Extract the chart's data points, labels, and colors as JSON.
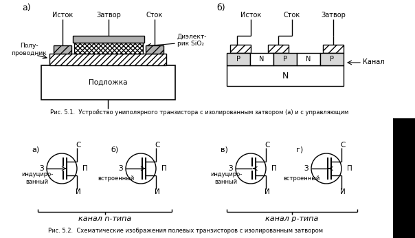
{
  "bg_color": "#ffffff",
  "line_color": "#000000",
  "fig_width": 6.04,
  "fig_height": 3.46,
  "dpi": 100,
  "top_caption": "Рис. 5.1.  Устройство униполярного транзистора с изолированным затвором (а) и с управляющим",
  "bottom_caption": "Рис. 5.2.  Схематические изображения полевых транзисторов с изолированным затвором",
  "label_a1": "а)",
  "label_b1": "б)",
  "label_podlozhka": "Подложка",
  "label_polu": "Полу-\nпроводник",
  "label_zatvor_a": "Затвор",
  "label_istok_a": "Исток",
  "label_stok_a": "Сток",
  "label_dielektrik": "Диэлект-\nрик SiO₂",
  "label_istok_b": "Исток",
  "label_stok_b": "Сток",
  "label_zatvor_b": "Затвор",
  "label_kanal": "Канал",
  "label_N_sub": "N",
  "label_S": "С",
  "label_Z": "З",
  "label_P_sym": "П",
  "label_I": "И",
  "label_inducirovanny": "индуциро-\nванный",
  "label_vstroenny": "встроенный",
  "label_kanal_n": "канал n-типа",
  "label_kanal_p": "канал p-типа",
  "sym_labels": [
    "а)",
    "б)",
    "в)",
    "г)"
  ]
}
